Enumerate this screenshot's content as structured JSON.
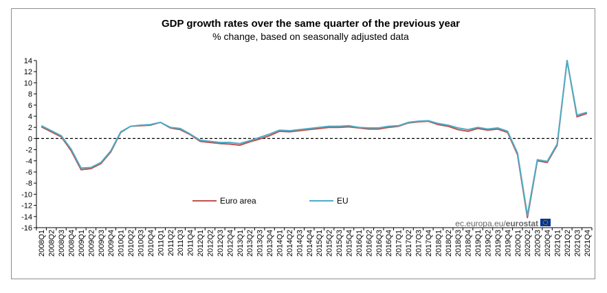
{
  "chart_data": {
    "type": "line",
    "title": "GDP growth rates over the same quarter of the previous year",
    "subtitle": "% change, based on seasonally adjusted data",
    "xlabel": "",
    "ylabel": "",
    "ylim": [
      -16,
      14
    ],
    "yticks": [
      14,
      12,
      10,
      8,
      6,
      4,
      2,
      0,
      -2,
      -4,
      -6,
      -8,
      -10,
      -12,
      -14,
      -16
    ],
    "grid": false,
    "legend_position": "bottom-left",
    "categories": [
      "2008Q1",
      "2008Q2",
      "2008Q3",
      "2008Q4",
      "2009Q1",
      "2009Q2",
      "2009Q3",
      "2009Q4",
      "2010Q1",
      "2010Q2",
      "2010Q3",
      "2010Q4",
      "2011Q1",
      "2011Q2",
      "2011Q3",
      "2011Q4",
      "2012Q1",
      "2012Q2",
      "2012Q3",
      "2012Q4",
      "2013Q1",
      "2013Q2",
      "2013Q3",
      "2013Q4",
      "2014Q1",
      "2014Q2",
      "2014Q3",
      "2014Q4",
      "2015Q1",
      "2015Q2",
      "2015Q3",
      "2015Q4",
      "2016Q1",
      "2016Q2",
      "2016Q3",
      "2016Q4",
      "2017Q1",
      "2017Q2",
      "2017Q3",
      "2017Q4",
      "2018Q1",
      "2018Q2",
      "2018Q3",
      "2018Q4",
      "2019Q1",
      "2019Q2",
      "2019Q3",
      "2019Q4",
      "2020Q1",
      "2020Q2",
      "2020Q3",
      "2020Q4",
      "2021Q1",
      "2021Q2",
      "2021Q3",
      "2021Q4"
    ],
    "series": [
      {
        "name": "Euro area",
        "color": "#c0504d",
        "values": [
          2.1,
          1.2,
          0.3,
          -2.2,
          -5.6,
          -5.4,
          -4.5,
          -2.4,
          1.1,
          2.2,
          2.3,
          2.4,
          2.9,
          1.9,
          1.6,
          0.7,
          -0.5,
          -0.7,
          -0.9,
          -1.0,
          -1.2,
          -0.6,
          -0.1,
          0.5,
          1.3,
          1.2,
          1.4,
          1.6,
          1.8,
          2.0,
          2.0,
          2.1,
          1.9,
          1.7,
          1.7,
          2.0,
          2.2,
          2.8,
          3.0,
          3.1,
          2.5,
          2.2,
          1.6,
          1.3,
          1.8,
          1.5,
          1.7,
          1.1,
          -2.9,
          -14.2,
          -4.0,
          -4.3,
          -1.2,
          14.0,
          3.9,
          4.5
        ]
      },
      {
        "name": "EU",
        "color": "#4bacc6",
        "values": [
          2.3,
          1.4,
          0.5,
          -1.9,
          -5.3,
          -5.2,
          -4.3,
          -2.2,
          1.2,
          2.2,
          2.4,
          2.5,
          2.9,
          2.0,
          1.8,
          0.8,
          -0.3,
          -0.5,
          -0.7,
          -0.7,
          -0.9,
          -0.4,
          0.2,
          0.8,
          1.5,
          1.4,
          1.6,
          1.8,
          2.0,
          2.2,
          2.2,
          2.3,
          2.0,
          1.9,
          1.9,
          2.2,
          2.3,
          2.9,
          3.1,
          3.2,
          2.7,
          2.4,
          1.9,
          1.6,
          2.0,
          1.7,
          1.9,
          1.3,
          -2.6,
          -13.8,
          -3.8,
          -4.1,
          -1.0,
          14.0,
          4.2,
          4.7
        ]
      }
    ],
    "source_label": "ec.europa.eu/",
    "source_brand": "eurostat"
  }
}
